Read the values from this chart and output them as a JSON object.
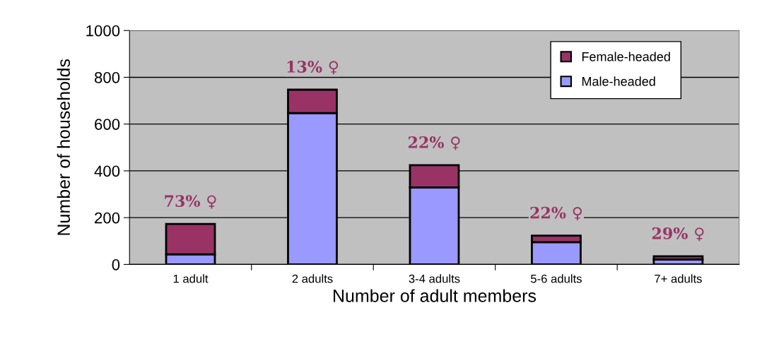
{
  "chart_data": {
    "type": "bar",
    "stacked": true,
    "xlabel": "Number of adult members",
    "ylabel": "Number of households",
    "categories": [
      "1 adult",
      "2 adults",
      "3-4 adults",
      "5-6 adults",
      "7+ adults"
    ],
    "series": [
      {
        "name": "Male-headed",
        "color": "#9999ff",
        "values": [
          43,
          647,
          329,
          95,
          21
        ]
      },
      {
        "name": "Female-headed",
        "color": "#993366",
        "values": [
          130,
          100,
          95,
          28,
          14
        ]
      }
    ],
    "ylim": [
      0,
      1000
    ],
    "yticks": [
      0,
      200,
      400,
      600,
      800,
      1000
    ],
    "grid": "y",
    "legend": "top right",
    "annotations": [
      "73% ♀",
      "13% ♀",
      "22% ♀",
      "22% ♀",
      "29% ♀"
    ]
  }
}
